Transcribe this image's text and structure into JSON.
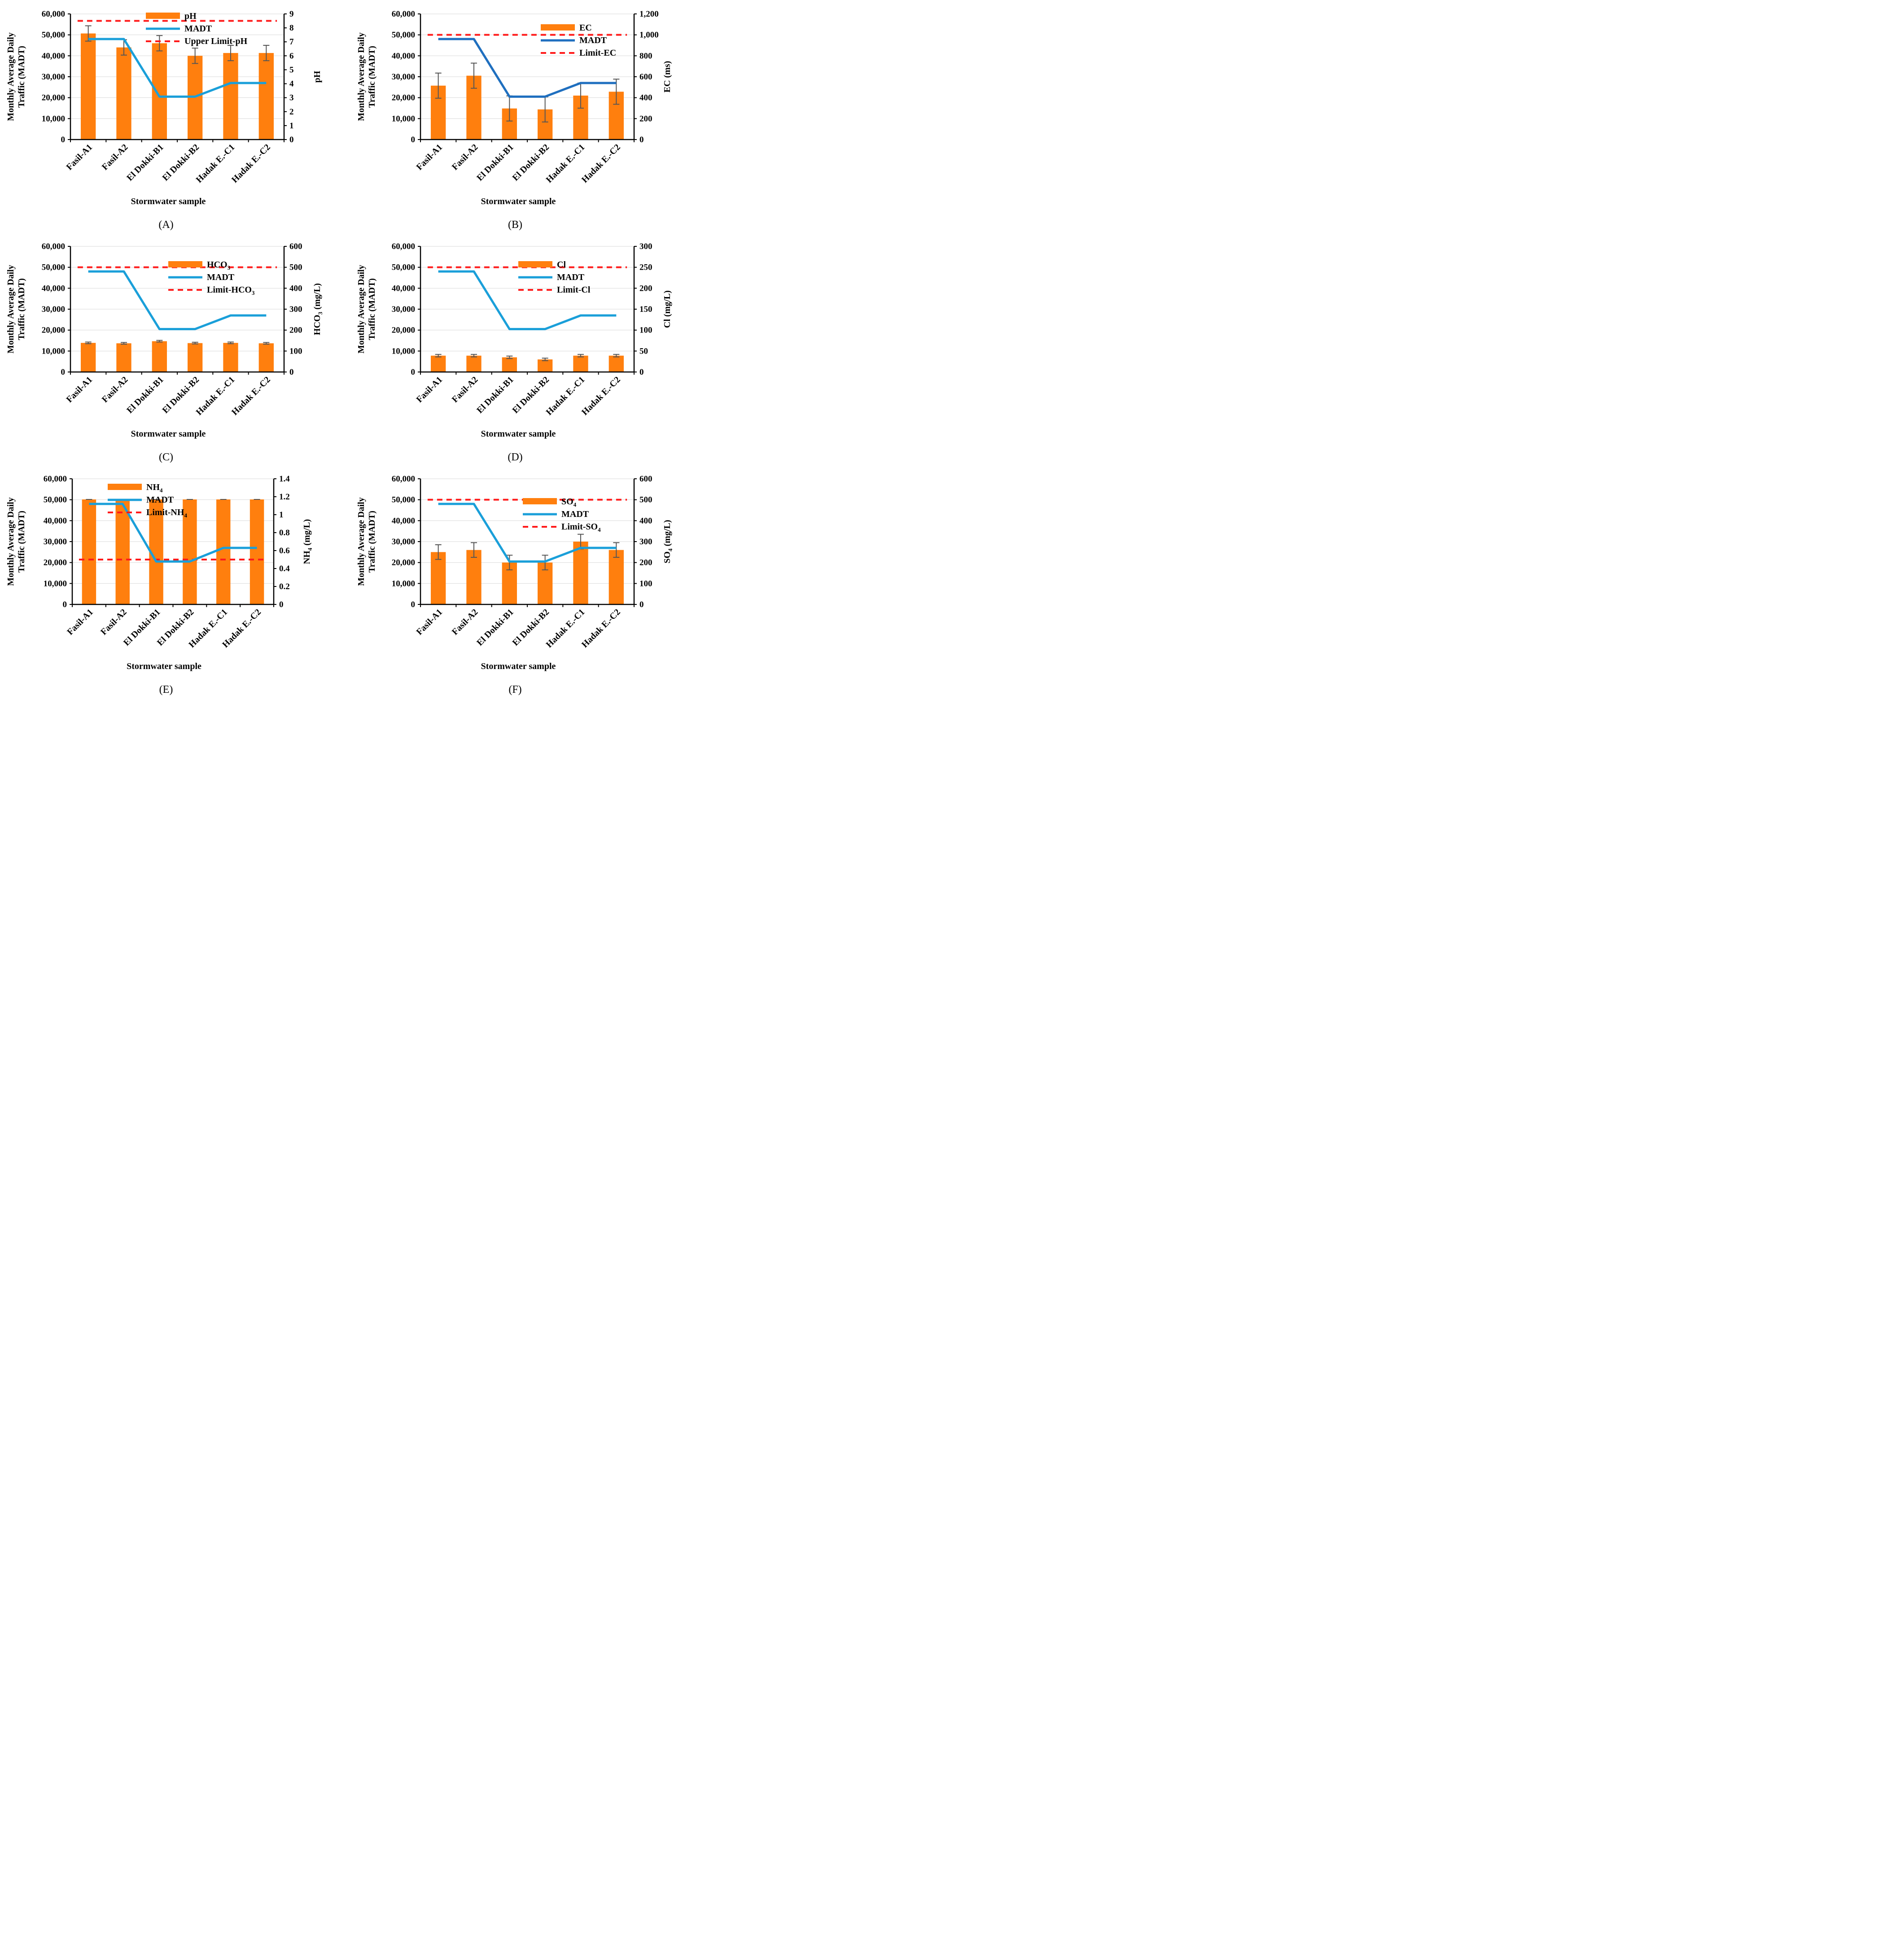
{
  "figure": {
    "panel_labels": [
      "(A)",
      "(B)",
      "(C)",
      "(D)",
      "(E)",
      "(F)"
    ]
  },
  "colors": {
    "bar": "#FF7F0E",
    "madt_light": "#1A9FD9",
    "madt_dark": "#1F6FBF",
    "limit": "#FF1A1A",
    "error": "#555555"
  },
  "chart_data": [
    {
      "type": "bar+line",
      "panel": "(A)",
      "categories": [
        "Fasil-A1",
        "Fasil-A2",
        "El Dokki-B1",
        "El Dokki-B2",
        "Hadak E.-C1",
        "Hadak E.-C2"
      ],
      "xlabel": "Stormwater sample",
      "ylabel_left": [
        "Monthly Average Daily",
        "Traffic (MADT)"
      ],
      "ylabel_right": {
        "main": "pH",
        "sub": "",
        "tail": ""
      },
      "left_ylim": [
        0,
        60000
      ],
      "left_ticks": [
        0,
        10000,
        20000,
        30000,
        40000,
        50000,
        60000
      ],
      "left_tick_labels": [
        "0",
        "10,000",
        "20,000",
        "30,000",
        "40,000",
        "50,000",
        "60,000"
      ],
      "right_ylim": [
        0,
        9
      ],
      "right_ticks": [
        0,
        1,
        2,
        3,
        4,
        5,
        6,
        7,
        8,
        9
      ],
      "right_tick_labels": [
        "0",
        "1",
        "2",
        "3",
        "4",
        "5",
        "6",
        "7",
        "8",
        "9"
      ],
      "bar_series": {
        "name": "pH",
        "name_sub": "",
        "values": [
          7.6,
          6.6,
          6.9,
          6.0,
          6.2,
          6.2
        ],
        "errors": [
          0.55,
          0.55,
          0.55,
          0.55,
          0.55,
          0.55
        ]
      },
      "madt": {
        "name": "MADT",
        "values": [
          48000,
          48000,
          20500,
          20500,
          27000,
          27000
        ]
      },
      "limit": {
        "name": "Upper Limit-pH",
        "name_sub": "",
        "value": 8.5
      },
      "madt_color": "madt_light",
      "legend_position": "top-center"
    },
    {
      "type": "bar+line",
      "panel": "(B)",
      "categories": [
        "Fasil-A1",
        "Fasil-A2",
        "El Dokki-B1",
        "El Dokki-B2",
        "Hadak E.-C1",
        "Hadak E.-C2"
      ],
      "xlabel": "Stormwater sample",
      "ylabel_left": [
        "Monthly Average Daily",
        "Traffic (MADT)"
      ],
      "ylabel_right": {
        "main": "EC (ms)",
        "sub": "",
        "tail": ""
      },
      "left_ylim": [
        0,
        60000
      ],
      "left_ticks": [
        0,
        10000,
        20000,
        30000,
        40000,
        50000,
        60000
      ],
      "left_tick_labels": [
        "0",
        "10,000",
        "20,000",
        "30,000",
        "40,000",
        "50,000",
        "60,000"
      ],
      "right_ylim": [
        0,
        1200
      ],
      "right_ticks": [
        0,
        200,
        400,
        600,
        800,
        1000,
        1200
      ],
      "right_tick_labels": [
        "0",
        "200",
        "400",
        "600",
        "800",
        "1,000",
        "1,200"
      ],
      "bar_series": {
        "name": "EC",
        "name_sub": "",
        "values": [
          515,
          610,
          297,
          288,
          420,
          457
        ],
        "errors": [
          120,
          120,
          120,
          120,
          120,
          120
        ]
      },
      "madt": {
        "name": "MADT",
        "values": [
          48000,
          48000,
          20500,
          20500,
          27000,
          27000
        ]
      },
      "limit": {
        "name": "Limit-EC",
        "name_sub": "",
        "value": 1000
      },
      "madt_color": "madt_dark",
      "legend_position": "top-right"
    },
    {
      "type": "bar+line",
      "panel": "(C)",
      "categories": [
        "Fasil-A1",
        "Fasil-A2",
        "El Dokki-B1",
        "El Dokki-B2",
        "Hadak E.-C1",
        "Hadak E.-C2"
      ],
      "xlabel": "Stormwater sample",
      "ylabel_left": [
        "Monthly Average Daily",
        "Traffic (MADT)"
      ],
      "ylabel_right": {
        "main": "HCO",
        "sub": "3",
        "tail": " (mg/L)"
      },
      "left_ylim": [
        0,
        60000
      ],
      "left_ticks": [
        0,
        10000,
        20000,
        30000,
        40000,
        50000,
        60000
      ],
      "left_tick_labels": [
        "0",
        "10,000",
        "20,000",
        "30,000",
        "40,000",
        "50,000",
        "60,000"
      ],
      "right_ylim": [
        0,
        600
      ],
      "right_ticks": [
        0,
        100,
        200,
        300,
        400,
        500,
        600
      ],
      "right_tick_labels": [
        "0",
        "100",
        "200",
        "300",
        "400",
        "500",
        "600"
      ],
      "bar_series": {
        "name": "HCO",
        "name_sub": "3",
        "values": [
          139,
          137,
          147,
          138,
          139,
          137
        ],
        "errors": [
          4,
          4,
          4,
          4,
          4,
          4
        ]
      },
      "madt": {
        "name": "MADT",
        "values": [
          48000,
          48000,
          20500,
          20500,
          27000,
          27000
        ]
      },
      "limit": {
        "name": "Limit-HCO",
        "name_sub": "3",
        "value": 500
      },
      "madt_color": "madt_light",
      "legend_position": "top-right"
    },
    {
      "type": "bar+line",
      "panel": "(D)",
      "categories": [
        "Fasil-A1",
        "Fasil-A2",
        "El Dokki-B1",
        "El Dokki-B2",
        "Hadak E.-C1",
        "Hadak E.-C2"
      ],
      "xlabel": "Stormwater sample",
      "ylabel_left": [
        "Monthly Average Daily",
        "Traffic (MADT)"
      ],
      "ylabel_right": {
        "main": "Cl (mg/L)",
        "sub": "",
        "tail": ""
      },
      "left_ylim": [
        0,
        60000
      ],
      "left_ticks": [
        0,
        10000,
        20000,
        30000,
        40000,
        50000,
        60000
      ],
      "left_tick_labels": [
        "0",
        "10,000",
        "20,000",
        "30,000",
        "40,000",
        "50,000",
        "60,000"
      ],
      "right_ylim": [
        0,
        300
      ],
      "right_ticks": [
        0,
        50,
        100,
        150,
        200,
        250,
        300
      ],
      "right_tick_labels": [
        "0",
        "50",
        "100",
        "150",
        "200",
        "250",
        "300"
      ],
      "bar_series": {
        "name": "Cl",
        "name_sub": "",
        "values": [
          39,
          39,
          35,
          30,
          39,
          39
        ],
        "errors": [
          3,
          3,
          3,
          3,
          3,
          3
        ]
      },
      "madt": {
        "name": "MADT",
        "values": [
          48000,
          48000,
          20500,
          20500,
          27000,
          27000
        ]
      },
      "limit": {
        "name": "Limit-Cl",
        "name_sub": "",
        "value": 250
      },
      "madt_color": "madt_light",
      "legend_position": "top-right"
    },
    {
      "type": "bar+line",
      "panel": "(E)",
      "categories": [
        "Fasil-A1",
        "Fasil-A2",
        "El Dokki-B1",
        "El Dokki-B2",
        "Hadak E.-C1",
        "Hadak E.-C2"
      ],
      "xlabel": "Stormwater sample",
      "ylabel_left": [
        "Monthly Average Daily",
        "Traffic (MADT)"
      ],
      "ylabel_right": {
        "main": "NH",
        "sub": "4",
        "tail": " (mg/L)"
      },
      "left_ylim": [
        0,
        60000
      ],
      "left_ticks": [
        0,
        10000,
        20000,
        30000,
        40000,
        50000,
        60000
      ],
      "left_tick_labels": [
        "0",
        "10,000",
        "20,000",
        "30,000",
        "40,000",
        "50,000",
        "60,000"
      ],
      "right_ylim": [
        0,
        1.4
      ],
      "right_ticks": [
        0,
        0.2,
        0.4,
        0.6,
        0.8,
        1,
        1.2,
        1.4
      ],
      "right_tick_labels": [
        "0",
        "0.2",
        "0.4",
        "0.6",
        "0.8",
        "1",
        "1.2",
        "1.4"
      ],
      "bar_series": {
        "name": "NH",
        "name_sub": "4",
        "values": [
          1.17,
          1.17,
          1.17,
          1.17,
          1.17,
          1.17
        ],
        "errors": [
          0,
          0,
          0,
          0,
          0,
          0
        ]
      },
      "madt": {
        "name": "MADT",
        "values": [
          48000,
          48000,
          20500,
          20500,
          27000,
          27000
        ]
      },
      "limit": {
        "name": "Limit-NH",
        "name_sub": "4",
        "value": 0.5
      },
      "madt_color": "madt_light",
      "legend_position": "top-center"
    },
    {
      "type": "bar+line",
      "panel": "(F)",
      "categories": [
        "Fasil-A1",
        "Fasil-A2",
        "El Dokki-B1",
        "El Dokki-B2",
        "Hadak E.-C1",
        "Hadak E.-C2"
      ],
      "xlabel": "Stormwater sample",
      "ylabel_left": [
        "Monthly Average Daily",
        "Traffic (MADT)"
      ],
      "ylabel_right": {
        "main": "SO",
        "sub": "4",
        "tail": " (mg/L)"
      },
      "left_ylim": [
        0,
        60000
      ],
      "left_ticks": [
        0,
        10000,
        20000,
        30000,
        40000,
        50000,
        60000
      ],
      "left_tick_labels": [
        "0",
        "10,000",
        "20,000",
        "30,000",
        "40,000",
        "50,000",
        "60,000"
      ],
      "right_ylim": [
        0,
        600
      ],
      "right_ticks": [
        0,
        100,
        200,
        300,
        400,
        500,
        600
      ],
      "right_tick_labels": [
        "0",
        "100",
        "200",
        "300",
        "400",
        "500",
        "600"
      ],
      "bar_series": {
        "name": "SO",
        "name_sub": "4",
        "values": [
          250,
          260,
          200,
          200,
          300,
          260
        ],
        "errors": [
          35,
          35,
          35,
          35,
          35,
          35
        ]
      },
      "madt": {
        "name": "MADT",
        "values": [
          48000,
          48000,
          20500,
          20500,
          27000,
          27000
        ]
      },
      "limit": {
        "name": "Limit-SO",
        "name_sub": "4",
        "value": 500
      },
      "madt_color": "madt_light",
      "legend_position": "top-right"
    }
  ]
}
